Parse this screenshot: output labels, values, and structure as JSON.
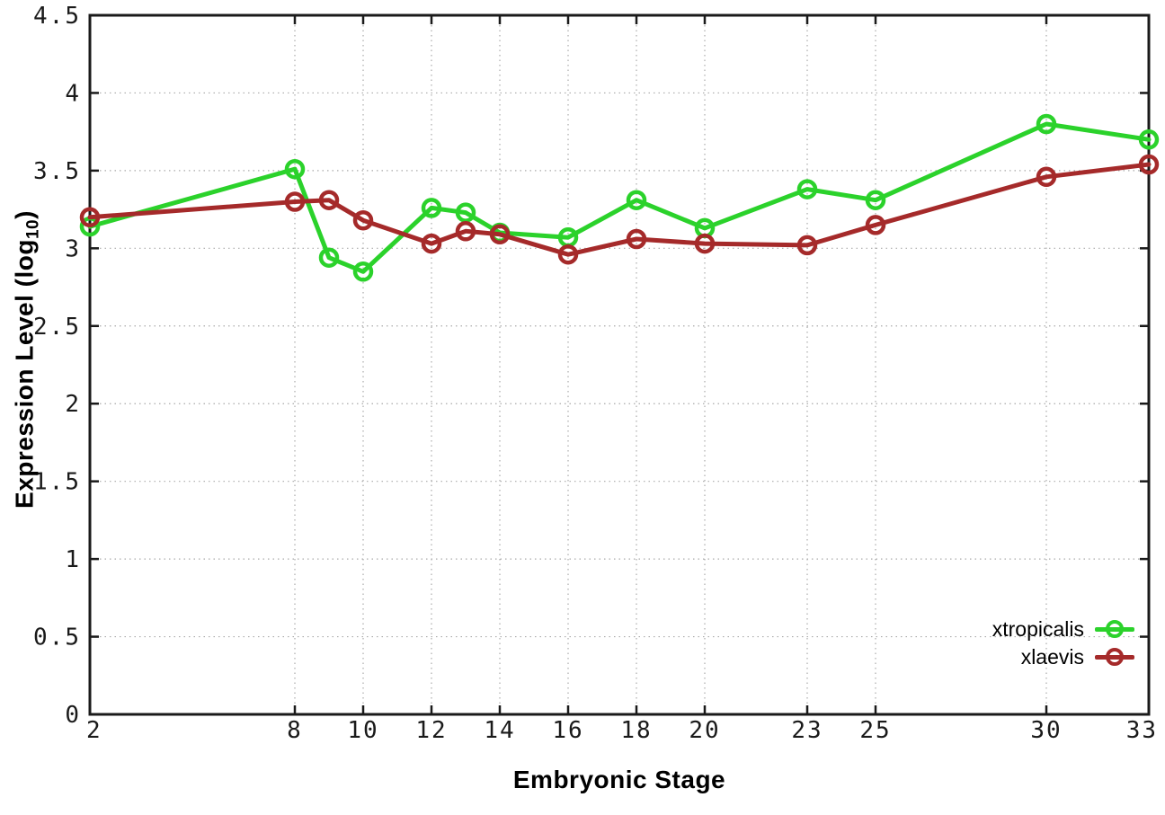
{
  "chart_data": {
    "type": "line",
    "title": "",
    "xlabel": "Embryonic Stage",
    "ylabel": "Expression Level (log10)",
    "ylabel_parts": {
      "main": "Expression Level (log",
      "sub": "10",
      "close": ")"
    },
    "x": [
      2,
      8,
      9,
      10,
      12,
      13,
      14,
      16,
      18,
      20,
      23,
      25,
      30,
      33
    ],
    "series": [
      {
        "name": "xtropicalis",
        "color": "#2bd22b",
        "values": [
          3.14,
          3.51,
          2.94,
          2.85,
          3.26,
          3.23,
          3.1,
          3.07,
          3.31,
          3.13,
          3.38,
          3.31,
          3.8,
          3.7
        ]
      },
      {
        "name": "xlaevis",
        "color": "#a52a2a",
        "values": [
          3.2,
          3.3,
          3.31,
          3.18,
          3.03,
          3.11,
          3.09,
          2.96,
          3.06,
          3.03,
          3.02,
          3.15,
          3.46,
          3.54
        ]
      }
    ],
    "xlim": [
      2,
      33
    ],
    "ylim": [
      0,
      4.5
    ],
    "x_ticks": [
      2,
      8,
      10,
      12,
      14,
      16,
      18,
      20,
      23,
      25,
      30,
      33
    ],
    "x_tick_labels": [
      "2",
      "8",
      "10",
      "12",
      "14",
      "16",
      "18",
      "20",
      "23",
      "25",
      "30",
      "33"
    ],
    "y_ticks": [
      0,
      0.5,
      1,
      1.5,
      2,
      2.5,
      3,
      3.5,
      4,
      4.5
    ],
    "y_tick_labels": [
      "0",
      "0.5",
      "1",
      "1.5",
      "2",
      "2.5",
      "3",
      "3.5",
      "4",
      "4.5"
    ],
    "grid": true,
    "legend_position": "bottom-right",
    "marker": "open-circle",
    "colors": {
      "border": "#1a1a1a",
      "grid": "#aaaaaa",
      "tick_text": "#1a1a1a"
    }
  }
}
